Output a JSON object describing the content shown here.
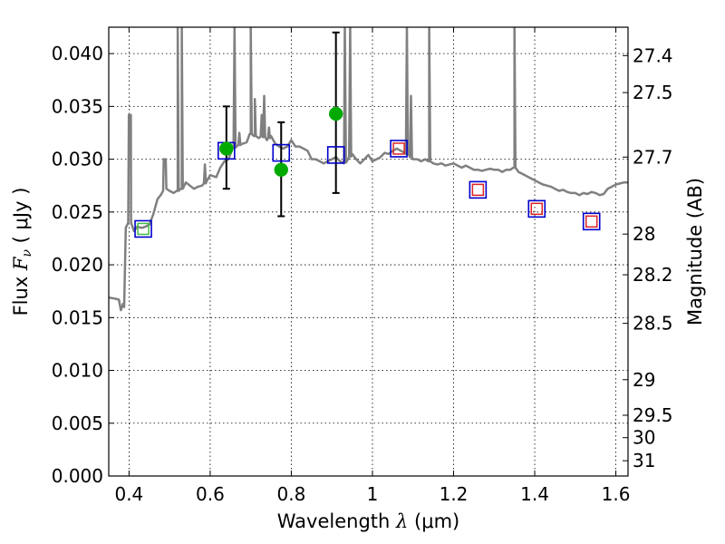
{
  "chart_data": {
    "type": "scatter",
    "x_axis": {
      "label": "Wavelength",
      "symbol": "λ",
      "unit": "(μm)",
      "range": [
        0.35,
        1.63
      ],
      "ticks": [
        0.4,
        0.6,
        0.8,
        1.0,
        1.2,
        1.4,
        1.6
      ],
      "tick_labels": [
        "0.4",
        "0.6",
        "0.8",
        "1",
        "1.2",
        "1.4",
        "1.6"
      ]
    },
    "y_axis": {
      "label": "Flux",
      "symbol": "F",
      "subscript": "ν",
      "unit": "( μJy )",
      "range": [
        0.0,
        0.0425
      ],
      "ticks": [
        0.0,
        0.005,
        0.01,
        0.015,
        0.02,
        0.025,
        0.03,
        0.035,
        0.04
      ],
      "tick_labels": [
        "0.000",
        "0.005",
        "0.010",
        "0.015",
        "0.020",
        "0.025",
        "0.030",
        "0.035",
        "0.040"
      ]
    },
    "y2_axis": {
      "label": "Magnitude (AB)",
      "ticks": [
        27.4,
        27.5,
        27.7,
        28,
        28.2,
        28.5,
        29,
        29.5,
        30,
        31
      ],
      "tick_labels": [
        "27.4",
        "27.5",
        "27.7",
        "28",
        "28.2",
        "28.5",
        "29",
        "29.5",
        "30",
        "31"
      ]
    },
    "grid": true,
    "series": [
      {
        "kind": "model_spectrum",
        "color": "#808080",
        "points": [
          [
            0.35,
            0.0169
          ],
          [
            0.365,
            0.0168
          ],
          [
            0.375,
            0.0167
          ],
          [
            0.38,
            0.0157
          ],
          [
            0.385,
            0.0163
          ],
          [
            0.388,
            0.016
          ],
          [
            0.392,
            0.0235
          ],
          [
            0.398,
            0.024
          ],
          [
            0.402,
            0.0342
          ],
          [
            0.405,
            0.024
          ],
          [
            0.412,
            0.0232
          ],
          [
            0.42,
            0.0236
          ],
          [
            0.432,
            0.0235
          ],
          [
            0.44,
            0.0236
          ],
          [
            0.45,
            0.0238
          ],
          [
            0.46,
            0.0248
          ],
          [
            0.47,
            0.0262
          ],
          [
            0.478,
            0.0266
          ],
          [
            0.484,
            0.027
          ],
          [
            0.488,
            0.03
          ],
          [
            0.492,
            0.0272
          ],
          [
            0.5,
            0.027
          ],
          [
            0.51,
            0.0268
          ],
          [
            0.52,
            0.027
          ],
          [
            0.53,
            0.0272
          ],
          [
            0.54,
            0.0278
          ],
          [
            0.55,
            0.0275
          ],
          [
            0.56,
            0.0272
          ],
          [
            0.57,
            0.0274
          ],
          [
            0.58,
            0.0275
          ],
          [
            0.59,
            0.0278
          ],
          [
            0.6,
            0.0285
          ],
          [
            0.615,
            0.0283
          ],
          [
            0.625,
            0.0292
          ],
          [
            0.635,
            0.0298
          ],
          [
            0.645,
            0.03
          ],
          [
            0.655,
            0.031
          ],
          [
            0.665,
            0.0312
          ],
          [
            0.675,
            0.0314
          ],
          [
            0.69,
            0.0316
          ],
          [
            0.7,
            0.0324
          ],
          [
            0.71,
            0.0322
          ],
          [
            0.72,
            0.032
          ],
          [
            0.73,
            0.0322
          ],
          [
            0.74,
            0.0318
          ],
          [
            0.75,
            0.0322
          ],
          [
            0.76,
            0.0315
          ],
          [
            0.77,
            0.0312
          ],
          [
            0.78,
            0.031
          ],
          [
            0.79,
            0.0312
          ],
          [
            0.8,
            0.0318
          ],
          [
            0.81,
            0.0312
          ],
          [
            0.82,
            0.0312
          ],
          [
            0.83,
            0.031
          ],
          [
            0.84,
            0.0308
          ],
          [
            0.85,
            0.03
          ],
          [
            0.86,
            0.03
          ],
          [
            0.87,
            0.0298
          ],
          [
            0.88,
            0.0296
          ],
          [
            0.89,
            0.0298
          ],
          [
            0.9,
            0.03
          ],
          [
            0.91,
            0.0302
          ],
          [
            0.92,
            0.0298
          ],
          [
            0.93,
            0.0296
          ],
          [
            0.94,
            0.03
          ],
          [
            0.95,
            0.0305
          ],
          [
            0.96,
            0.03
          ],
          [
            0.97,
            0.0296
          ],
          [
            0.98,
            0.03
          ],
          [
            0.99,
            0.0304
          ],
          [
            1.0,
            0.0298
          ],
          [
            1.01,
            0.03
          ],
          [
            1.02,
            0.0302
          ],
          [
            1.03,
            0.0306
          ],
          [
            1.04,
            0.0305
          ],
          [
            1.05,
            0.0308
          ],
          [
            1.06,
            0.031
          ],
          [
            1.07,
            0.0308
          ],
          [
            1.08,
            0.0306
          ],
          [
            1.09,
            0.0304
          ],
          [
            1.1,
            0.03
          ],
          [
            1.11,
            0.03
          ],
          [
            1.12,
            0.0298
          ],
          [
            1.13,
            0.03
          ],
          [
            1.14,
            0.0298
          ],
          [
            1.15,
            0.0296
          ],
          [
            1.16,
            0.0295
          ],
          [
            1.17,
            0.0296
          ],
          [
            1.18,
            0.0294
          ],
          [
            1.19,
            0.0295
          ],
          [
            1.2,
            0.0296
          ],
          [
            1.21,
            0.0294
          ],
          [
            1.22,
            0.0292
          ],
          [
            1.23,
            0.0294
          ],
          [
            1.24,
            0.0292
          ],
          [
            1.25,
            0.029
          ],
          [
            1.26,
            0.029
          ],
          [
            1.27,
            0.0289
          ],
          [
            1.28,
            0.029
          ],
          [
            1.29,
            0.0291
          ],
          [
            1.3,
            0.029
          ],
          [
            1.31,
            0.029
          ],
          [
            1.32,
            0.0288
          ],
          [
            1.33,
            0.029
          ],
          [
            1.34,
            0.029
          ],
          [
            1.35,
            0.0292
          ],
          [
            1.36,
            0.0288
          ],
          [
            1.37,
            0.0286
          ],
          [
            1.38,
            0.0284
          ],
          [
            1.39,
            0.0282
          ],
          [
            1.4,
            0.028
          ],
          [
            1.41,
            0.0278
          ],
          [
            1.42,
            0.0276
          ],
          [
            1.43,
            0.0275
          ],
          [
            1.44,
            0.0274
          ],
          [
            1.45,
            0.0272
          ],
          [
            1.46,
            0.027
          ],
          [
            1.47,
            0.0271
          ],
          [
            1.48,
            0.0269
          ],
          [
            1.49,
            0.0268
          ],
          [
            1.5,
            0.0268
          ],
          [
            1.51,
            0.0266
          ],
          [
            1.52,
            0.0268
          ],
          [
            1.53,
            0.0267
          ],
          [
            1.54,
            0.0269
          ],
          [
            1.55,
            0.0268
          ],
          [
            1.56,
            0.0266
          ],
          [
            1.57,
            0.0267
          ],
          [
            1.58,
            0.0272
          ],
          [
            1.59,
            0.0274
          ],
          [
            1.6,
            0.0276
          ],
          [
            1.61,
            0.0277
          ],
          [
            1.62,
            0.0278
          ],
          [
            1.63,
            0.0278
          ]
        ],
        "emission_lines": [
          {
            "x": 0.402,
            "peak": 0.0342
          },
          {
            "x": 0.488,
            "peak": 0.03
          },
          {
            "x": 0.52,
            "peak": 0.0425
          },
          {
            "x": 0.53,
            "peak": 0.0425
          },
          {
            "x": 0.587,
            "peak": 0.0295
          },
          {
            "x": 0.66,
            "peak": 0.0425
          },
          {
            "x": 0.672,
            "peak": 0.0325
          },
          {
            "x": 0.7,
            "peak": 0.0425
          },
          {
            "x": 0.71,
            "peak": 0.0357
          },
          {
            "x": 0.727,
            "peak": 0.0342
          },
          {
            "x": 0.733,
            "peak": 0.036
          },
          {
            "x": 0.745,
            "peak": 0.033
          },
          {
            "x": 0.932,
            "peak": 0.0425
          },
          {
            "x": 0.945,
            "peak": 0.0425
          },
          {
            "x": 1.085,
            "peak": 0.0425
          },
          {
            "x": 1.095,
            "peak": 0.036
          },
          {
            "x": 1.14,
            "peak": 0.0425
          },
          {
            "x": 1.35,
            "peak": 0.0425
          }
        ]
      },
      {
        "kind": "observed_photometry",
        "marker": "circle",
        "color": "#00aa00",
        "points": [
          {
            "x": 0.64,
            "y": 0.031,
            "yerr": [
              0.0272,
              0.035
            ]
          },
          {
            "x": 0.775,
            "y": 0.029,
            "yerr": [
              0.0246,
              0.0335
            ]
          },
          {
            "x": 0.91,
            "y": 0.0343,
            "yerr": [
              0.0268,
              0.042
            ]
          }
        ]
      },
      {
        "kind": "model_photometry",
        "marker": "square",
        "color": "#0000cc",
        "points": [
          {
            "x": 0.435,
            "y": 0.0234
          },
          {
            "x": 0.64,
            "y": 0.0308
          },
          {
            "x": 0.775,
            "y": 0.0306
          },
          {
            "x": 0.91,
            "y": 0.0304
          },
          {
            "x": 1.065,
            "y": 0.031
          },
          {
            "x": 1.26,
            "y": 0.0271
          },
          {
            "x": 1.405,
            "y": 0.0253
          },
          {
            "x": 1.54,
            "y": 0.0241
          }
        ]
      },
      {
        "kind": "upper_limits_band",
        "marker": "square",
        "color": "#dd2222",
        "points": [
          {
            "x": 1.065,
            "y": 0.031
          },
          {
            "x": 1.26,
            "y": 0.0271
          },
          {
            "x": 1.405,
            "y": 0.0253
          },
          {
            "x": 1.54,
            "y": 0.0241
          }
        ]
      },
      {
        "kind": "band_marker",
        "marker": "square",
        "color": "#44bb44",
        "points": [
          {
            "x": 0.435,
            "y": 0.0234
          }
        ]
      }
    ]
  }
}
